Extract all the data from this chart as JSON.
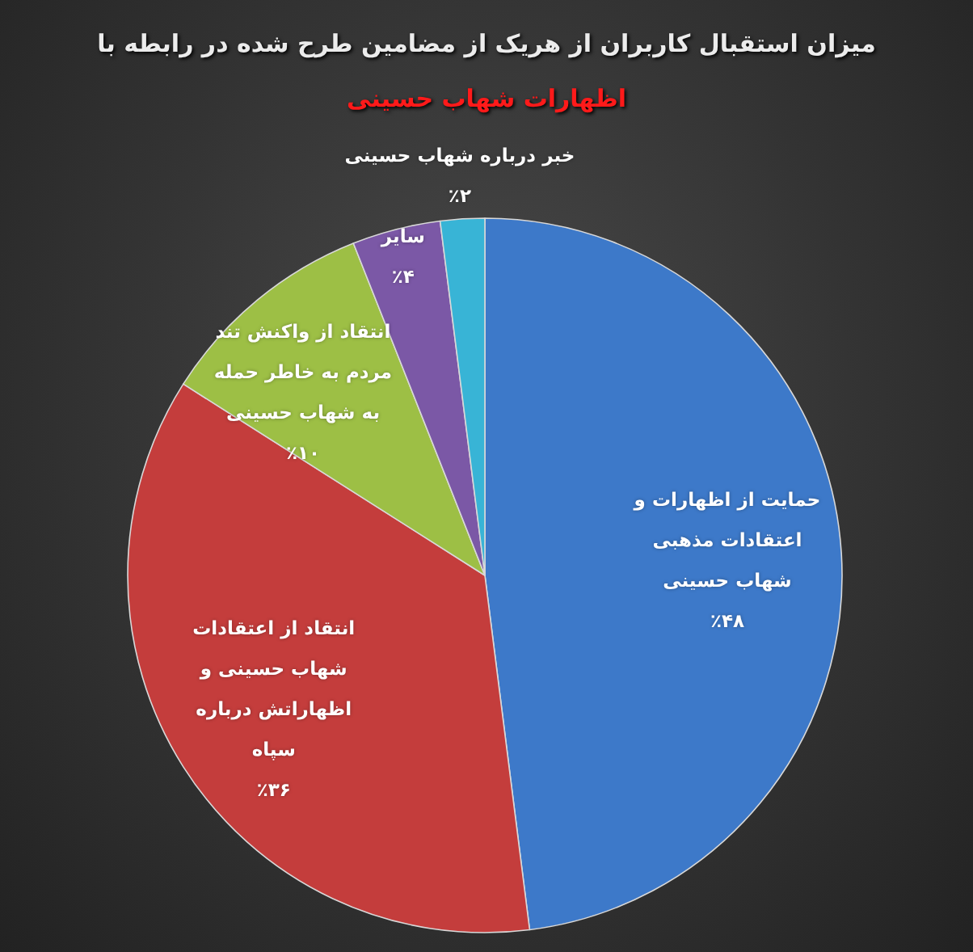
{
  "chart_data": {
    "type": "pie",
    "title": "میزان استقبال کاربران از هریک از مضامین طرح شده در رابطه با",
    "subtitle": "اظهارات شهاب حسینی",
    "categories": [
      "حمایت از اظهارات و اعتقادات مذهبی شهاب حسینی",
      "انتقاد از اعتقادات شهاب حسینی و اظهاراتش درباره سپاه",
      "انتقاد از واکنش تند مردم به خاطر حمله به شهاب حسینی",
      "سایر",
      "خبر درباره شهاب حسینی"
    ],
    "values": [
      48,
      36,
      10,
      4,
      2
    ],
    "colors": [
      "#3d79c9",
      "#c43d3c",
      "#9dbf45",
      "#7b58a6",
      "#38b4d6"
    ],
    "value_labels": [
      "٪۴۸",
      "٪۳۶",
      "٪۱۰",
      "٪۴",
      "٪۲"
    ]
  }
}
